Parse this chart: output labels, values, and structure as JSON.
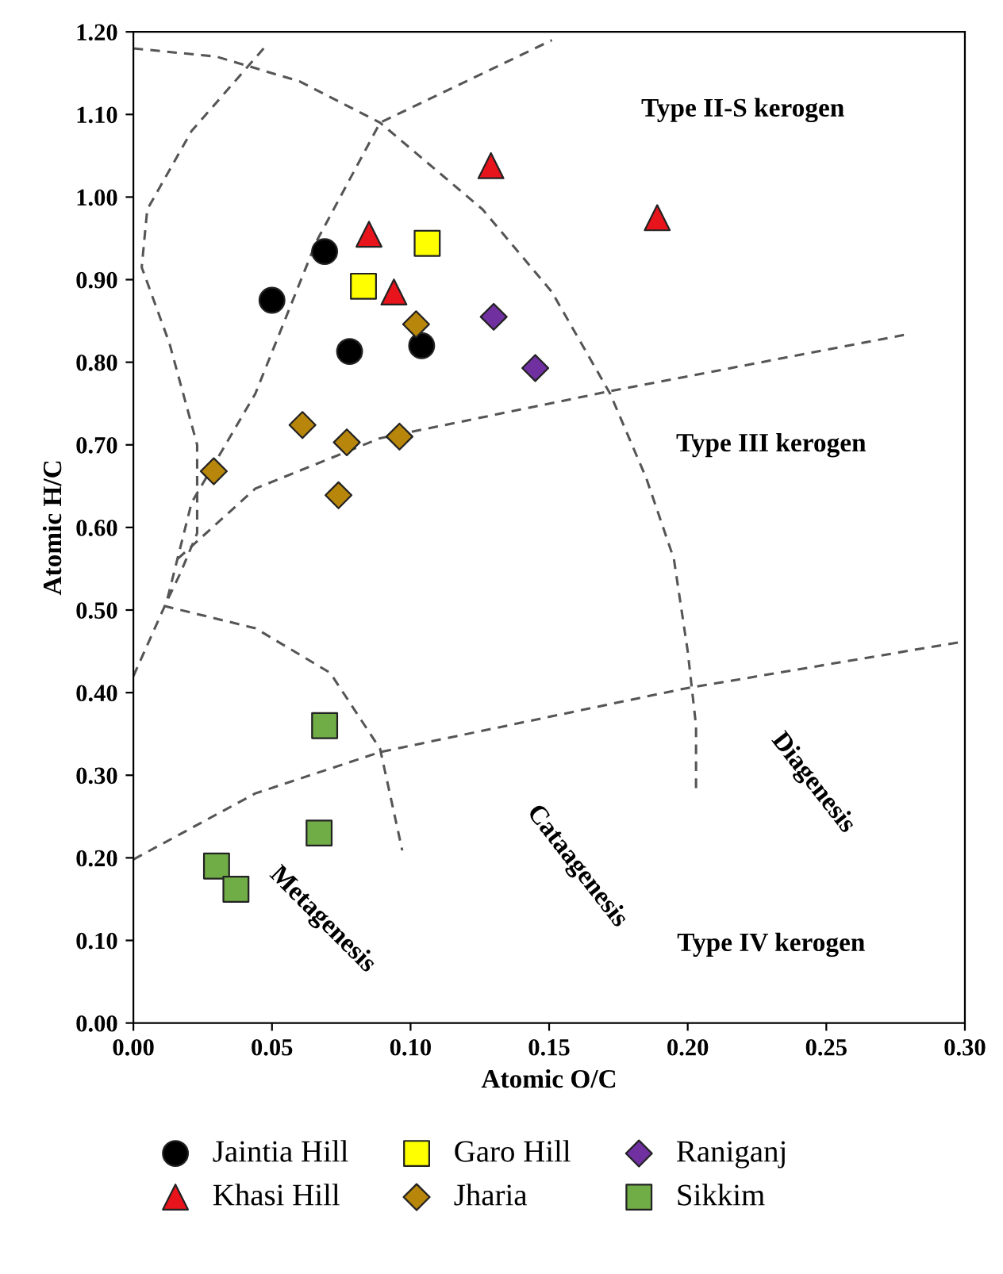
{
  "chart_data": {
    "type": "scatter",
    "xlabel": "Atomic O/C",
    "ylabel": "Atomic H/C",
    "xlim": [
      0,
      0.3
    ],
    "ylim": [
      0,
      1.2
    ],
    "xticks": [
      {
        "value": 0,
        "label": "0.00"
      },
      {
        "value": 0.05,
        "label": "0.05"
      },
      {
        "value": 0.1,
        "label": "0.10"
      },
      {
        "value": 0.15,
        "label": "0.15"
      },
      {
        "value": 0.2,
        "label": "0.20"
      },
      {
        "value": 0.25,
        "label": "0.25"
      },
      {
        "value": 0.3,
        "label": "0.30"
      }
    ],
    "yticks": [
      {
        "value": 0,
        "label": "0.00"
      },
      {
        "value": 0.1,
        "label": "0.10"
      },
      {
        "value": 0.2,
        "label": "0.20"
      },
      {
        "value": 0.3,
        "label": "0.30"
      },
      {
        "value": 0.4,
        "label": "0.40"
      },
      {
        "value": 0.5,
        "label": "0.50"
      },
      {
        "value": 0.6,
        "label": "0.60"
      },
      {
        "value": 0.7,
        "label": "0.70"
      },
      {
        "value": 0.8,
        "label": "0.80"
      },
      {
        "value": 0.9,
        "label": "0.90"
      },
      {
        "value": 1.0,
        "label": "1.00"
      },
      {
        "value": 1.1,
        "label": "1.10"
      },
      {
        "value": 1.2,
        "label": "1.20"
      }
    ],
    "grid": false,
    "legend": "bottom",
    "series": [
      {
        "name": "Jaintia Hill",
        "color": "#000000",
        "marker": "circle",
        "x": [
          0.05,
          0.069,
          0.078,
          0.104
        ],
        "values": [
          0.875,
          0.934,
          0.813,
          0.82
        ]
      },
      {
        "name": "Khasi Hill",
        "color": "#e8141b",
        "marker": "triangle",
        "x": [
          0.085,
          0.094,
          0.129,
          0.189
        ],
        "values": [
          0.955,
          0.885,
          1.038,
          0.975
        ]
      },
      {
        "name": "Garo Hill",
        "color": "#ffff00",
        "marker": "square",
        "x": [
          0.083,
          0.106
        ],
        "values": [
          0.892,
          0.944
        ]
      },
      {
        "name": "Jharia",
        "color": "#b8860b",
        "marker": "diamond",
        "x": [
          0.029,
          0.061,
          0.077,
          0.096,
          0.074,
          0.102
        ],
        "values": [
          0.668,
          0.724,
          0.703,
          0.71,
          0.639,
          0.846
        ]
      },
      {
        "name": "Raniganj",
        "color": "#7030a0",
        "marker": "diamond",
        "x": [
          0.13,
          0.145
        ],
        "values": [
          0.855,
          0.793
        ]
      },
      {
        "name": "Sikkim",
        "color": "#70ad47",
        "marker": "square",
        "x": [
          0.069,
          0.067,
          0.03,
          0.037
        ],
        "values": [
          0.36,
          0.23,
          0.19,
          0.162
        ]
      },
      {
        "type": "line",
        "color": "#555555",
        "line_style": "dashed",
        "marker": "none",
        "x": [
          0,
          0.03,
          0.06,
          0.089,
          0.126,
          0.151,
          0.172,
          0.185,
          0.195,
          0.2,
          0.203,
          0.203
        ],
        "values": [
          1.18,
          1.17,
          1.14,
          1.09,
          0.985,
          0.885,
          0.762,
          0.66,
          0.562,
          0.45,
          0.36,
          0.28
        ]
      },
      {
        "type": "line",
        "color": "#555555",
        "line_style": "dashed",
        "marker": "none",
        "x": [
          0.047,
          0.021,
          0.005,
          0.003,
          0.013,
          0.023,
          0.023,
          0.017,
          0.012
        ],
        "values": [
          1.18,
          1.08,
          0.985,
          0.915,
          0.823,
          0.7,
          0.593,
          0.545,
          0.51
        ]
      },
      {
        "type": "line",
        "color": "#555555",
        "line_style": "dashed",
        "marker": "none",
        "x": [
          0,
          0.012,
          0.021,
          0.044,
          0.066,
          0.089,
          0.151
        ],
        "values": [
          0.42,
          0.51,
          0.63,
          0.762,
          0.946,
          1.09,
          1.19
        ]
      },
      {
        "type": "line",
        "color": "#555555",
        "line_style": "dashed",
        "marker": "none",
        "x": [
          0.016,
          0.044,
          0.089,
          0.172,
          0.278
        ],
        "values": [
          0.562,
          0.647,
          0.708,
          0.765,
          0.833
        ]
      },
      {
        "type": "line",
        "color": "#555555",
        "line_style": "dashed",
        "marker": "none",
        "x": [
          0.011,
          0.044,
          0.071,
          0.089,
          0.097
        ],
        "values": [
          0.505,
          0.478,
          0.424,
          0.332,
          0.209
        ]
      },
      {
        "type": "line",
        "color": "#555555",
        "line_style": "dashed",
        "marker": "none",
        "x": [
          0,
          0.044,
          0.089,
          0.199,
          0.298
        ],
        "values": [
          0.198,
          0.278,
          0.328,
          0.405,
          0.461
        ]
      }
    ],
    "annotations": [
      "Type II-S kerogen",
      "Type III kerogen",
      "Type IV kerogen",
      "Diagenesis",
      "Cataagenesis",
      "Metagenesis"
    ]
  }
}
